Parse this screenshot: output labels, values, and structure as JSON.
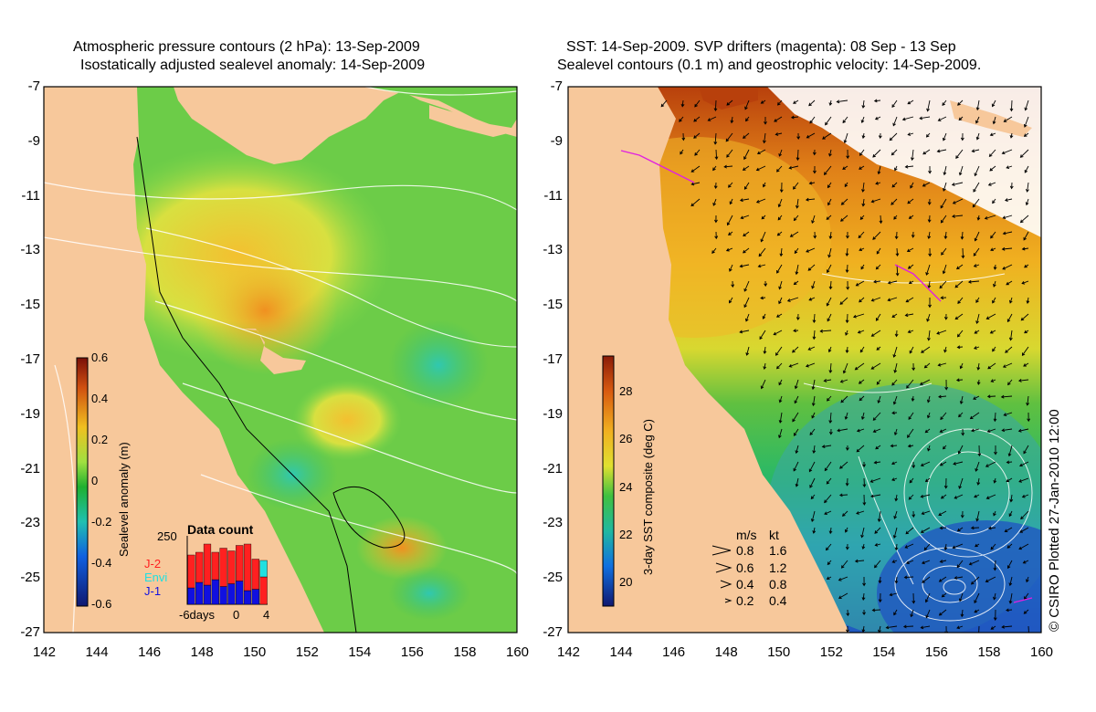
{
  "left_panel": {
    "title_line1": "Atmospheric pressure contours (2 hPa): 13-Sep-2009",
    "title_line2": "Isostatically adjusted sealevel anomaly: 14-Sep-2009",
    "x_ticks": [
      "142",
      "144",
      "146",
      "148",
      "150",
      "152",
      "154",
      "156",
      "158",
      "160"
    ],
    "y_ticks": [
      "-7",
      "-9",
      "-11",
      "-13",
      "-15",
      "-17",
      "-19",
      "-21",
      "-23",
      "-25",
      "-27"
    ],
    "colorbar": {
      "label": "Sealevel anomaly (m)",
      "ticks": [
        "0.6",
        "0.4",
        "0.2",
        "0",
        "-0.2",
        "-0.4",
        "-0.6"
      ],
      "range": [
        -0.6,
        0.6
      ]
    },
    "data_count": {
      "title": "Data count",
      "max_label": "250",
      "x_labels": [
        "-6days",
        "0",
        "4"
      ],
      "legend": [
        {
          "label": "J-2",
          "color": "#ff2020"
        },
        {
          "label": "Envi",
          "color": "#20e0e0"
        },
        {
          "label": "J-1",
          "color": "#1010e0"
        }
      ],
      "bars_j1": [
        60,
        80,
        70,
        90,
        65,
        75,
        85,
        50,
        55,
        0
      ],
      "bars_j2": [
        120,
        110,
        150,
        100,
        140,
        120,
        130,
        170,
        110,
        100
      ],
      "bars_envi": [
        0,
        0,
        0,
        0,
        0,
        0,
        0,
        0,
        0,
        60
      ]
    }
  },
  "right_panel": {
    "title_line1": "SST: 14-Sep-2009. SVP drifters (magenta): 08 Sep - 13 Sep",
    "title_line2": "Sealevel contours (0.1 m) and geostrophic velocity: 14-Sep-2009.",
    "x_ticks": [
      "142",
      "144",
      "146",
      "148",
      "150",
      "152",
      "154",
      "156",
      "158",
      "160"
    ],
    "y_ticks": [
      "-7",
      "-9",
      "-11",
      "-13",
      "-15",
      "-17",
      "-19",
      "-21",
      "-23",
      "-25",
      "-27"
    ],
    "colorbar": {
      "label": "3-day SST composite (deg C)",
      "ticks": [
        "28",
        "26",
        "24",
        "22",
        "20"
      ],
      "range": [
        19,
        29.5
      ]
    },
    "velocity_legend": {
      "header_ms": "m/s",
      "header_kt": "kt",
      "rows": [
        {
          "ms": "0.8",
          "kt": "1.6"
        },
        {
          "ms": "0.6",
          "kt": "1.2"
        },
        {
          "ms": "0.4",
          "kt": "0.8"
        },
        {
          "ms": "0.2",
          "kt": "0.4"
        }
      ]
    }
  },
  "credit": "© CSIRO Plotted 27-Jan-2010 12:00",
  "colors": {
    "land": "#f7c89b",
    "sla_low": "#1f2a9a",
    "sla_zero": "#2fc04a",
    "sla_high": "#8a1a0a",
    "sst_cool": "#1f4ac0",
    "sst_warm": "#c85a10"
  }
}
